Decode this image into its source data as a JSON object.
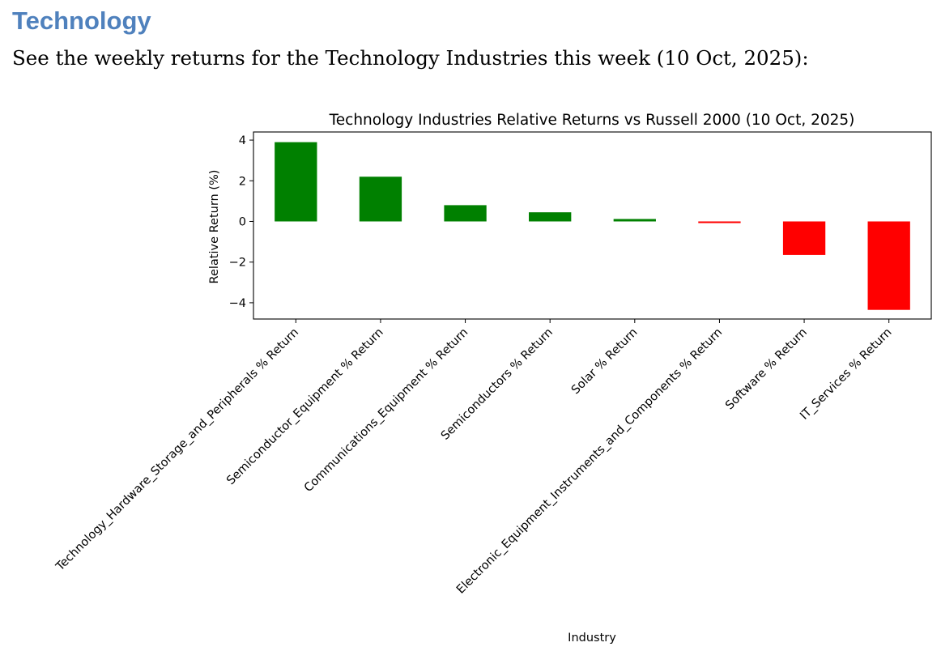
{
  "document": {
    "heading": "Technology",
    "intro": "See the weekly returns for the Technology Industries this week (10 Oct, 2025):"
  },
  "chart_data": {
    "type": "bar",
    "title": "Technology Industries Relative Returns vs Russell 2000 (10 Oct, 2025)",
    "xlabel": "Industry",
    "ylabel": "Relative Return (%)",
    "ylim": [
      -4.8,
      4.4
    ],
    "yticks": [
      4,
      2,
      0,
      -2,
      -4
    ],
    "ytick_labels": [
      "4",
      "2",
      "0",
      "−2",
      "−4"
    ],
    "categories": [
      "Technology_Hardware_Storage_and_Peripherals % Return",
      "Semiconductor_Equipment % Return",
      "Communications_Equipment % Return",
      "Semiconductors % Return",
      "Solar % Return",
      "Electronic_Equipment_Instruments_and_Components % Return",
      "Software % Return",
      "IT_Services % Return"
    ],
    "values": [
      3.9,
      2.2,
      0.8,
      0.45,
      0.12,
      -0.08,
      -1.65,
      -4.35
    ],
    "colors": {
      "positive": "#008000",
      "negative": "#ff0000"
    },
    "grid": false,
    "legend": "none"
  }
}
